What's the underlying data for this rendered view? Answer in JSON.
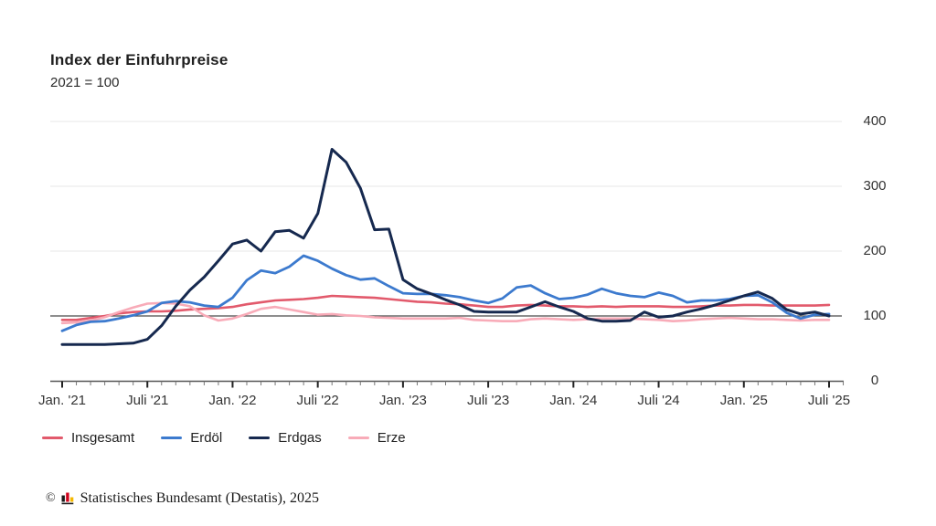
{
  "chart": {
    "title": "Index der Einfuhrpreise",
    "subtitle": "2021 = 100",
    "y_ticks": [
      400,
      300,
      200,
      100,
      0
    ],
    "x_tick_labels": [
      "Jan. '21",
      "Juli '21",
      "Jan. '22",
      "Juli '22",
      "Jan. '23",
      "Juli '23",
      "Jan. '24",
      "Juli '24",
      "Jan. '25",
      "Juli '25"
    ]
  },
  "chart_data": {
    "type": "line",
    "title": "Index der Einfuhrpreise",
    "subtitle": "2021 = 100",
    "x_unit": "Monat",
    "x_start": "Januar 2021",
    "x_end": "Juli 2025",
    "n_points": 55,
    "ylim": [
      0,
      400
    ],
    "grid": true,
    "reference_line_y": 100,
    "legend_position": "bottom-left",
    "axis_labels_side": "right",
    "series": [
      {
        "name": "Insgesamt",
        "color": "#e25a6c",
        "values": [
          94,
          94,
          97,
          100,
          104,
          106,
          107,
          107,
          108,
          110,
          111,
          112,
          114,
          118,
          121,
          124,
          125,
          126,
          128,
          131,
          130,
          129,
          128,
          126,
          124,
          122,
          121,
          119,
          118,
          116,
          114,
          114,
          116,
          117,
          116,
          115,
          115,
          114,
          115,
          114,
          115,
          115,
          115,
          114,
          114,
          115,
          116,
          116,
          117,
          117,
          116,
          116,
          116,
          116,
          117
        ]
      },
      {
        "name": "Erdöl",
        "color": "#3c7ace",
        "values": [
          77,
          86,
          91,
          92,
          96,
          101,
          107,
          120,
          123,
          121,
          116,
          114,
          128,
          155,
          170,
          166,
          176,
          193,
          185,
          173,
          163,
          156,
          158,
          146,
          135,
          134,
          134,
          132,
          129,
          124,
          120,
          127,
          144,
          147,
          135,
          126,
          128,
          133,
          142,
          135,
          131,
          129,
          136,
          131,
          121,
          124,
          124,
          126,
          131,
          132,
          121,
          105,
          96,
          102,
          103
        ]
      },
      {
        "name": "Erdgas",
        "color": "#16294f",
        "values": [
          56,
          56,
          56,
          56,
          57,
          58,
          64,
          85,
          115,
          140,
          160,
          185,
          211,
          217,
          200,
          230,
          232,
          220,
          258,
          357,
          337,
          297,
          233,
          234,
          156,
          142,
          134,
          125,
          117,
          107,
          106,
          106,
          106,
          114,
          122,
          114,
          107,
          96,
          92,
          92,
          93,
          106,
          98,
          100,
          106,
          111,
          117,
          124,
          131,
          137,
          127,
          110,
          103,
          106,
          100
        ]
      },
      {
        "name": "Erze",
        "color": "#f8abb8",
        "values": [
          89,
          90,
          93,
          98,
          106,
          113,
          119,
          120,
          119,
          115,
          101,
          93,
          96,
          103,
          111,
          114,
          110,
          106,
          102,
          103,
          101,
          100,
          98,
          97,
          96,
          96,
          96,
          96,
          97,
          94,
          93,
          92,
          92,
          95,
          96,
          95,
          94,
          95,
          96,
          96,
          96,
          95,
          94,
          92,
          93,
          95,
          96,
          97,
          96,
          95,
          95,
          94,
          93,
          94,
          94
        ]
      }
    ]
  },
  "footer": {
    "copyright": "©",
    "text": "Statistisches Bundesamt (Destatis), 2025"
  }
}
